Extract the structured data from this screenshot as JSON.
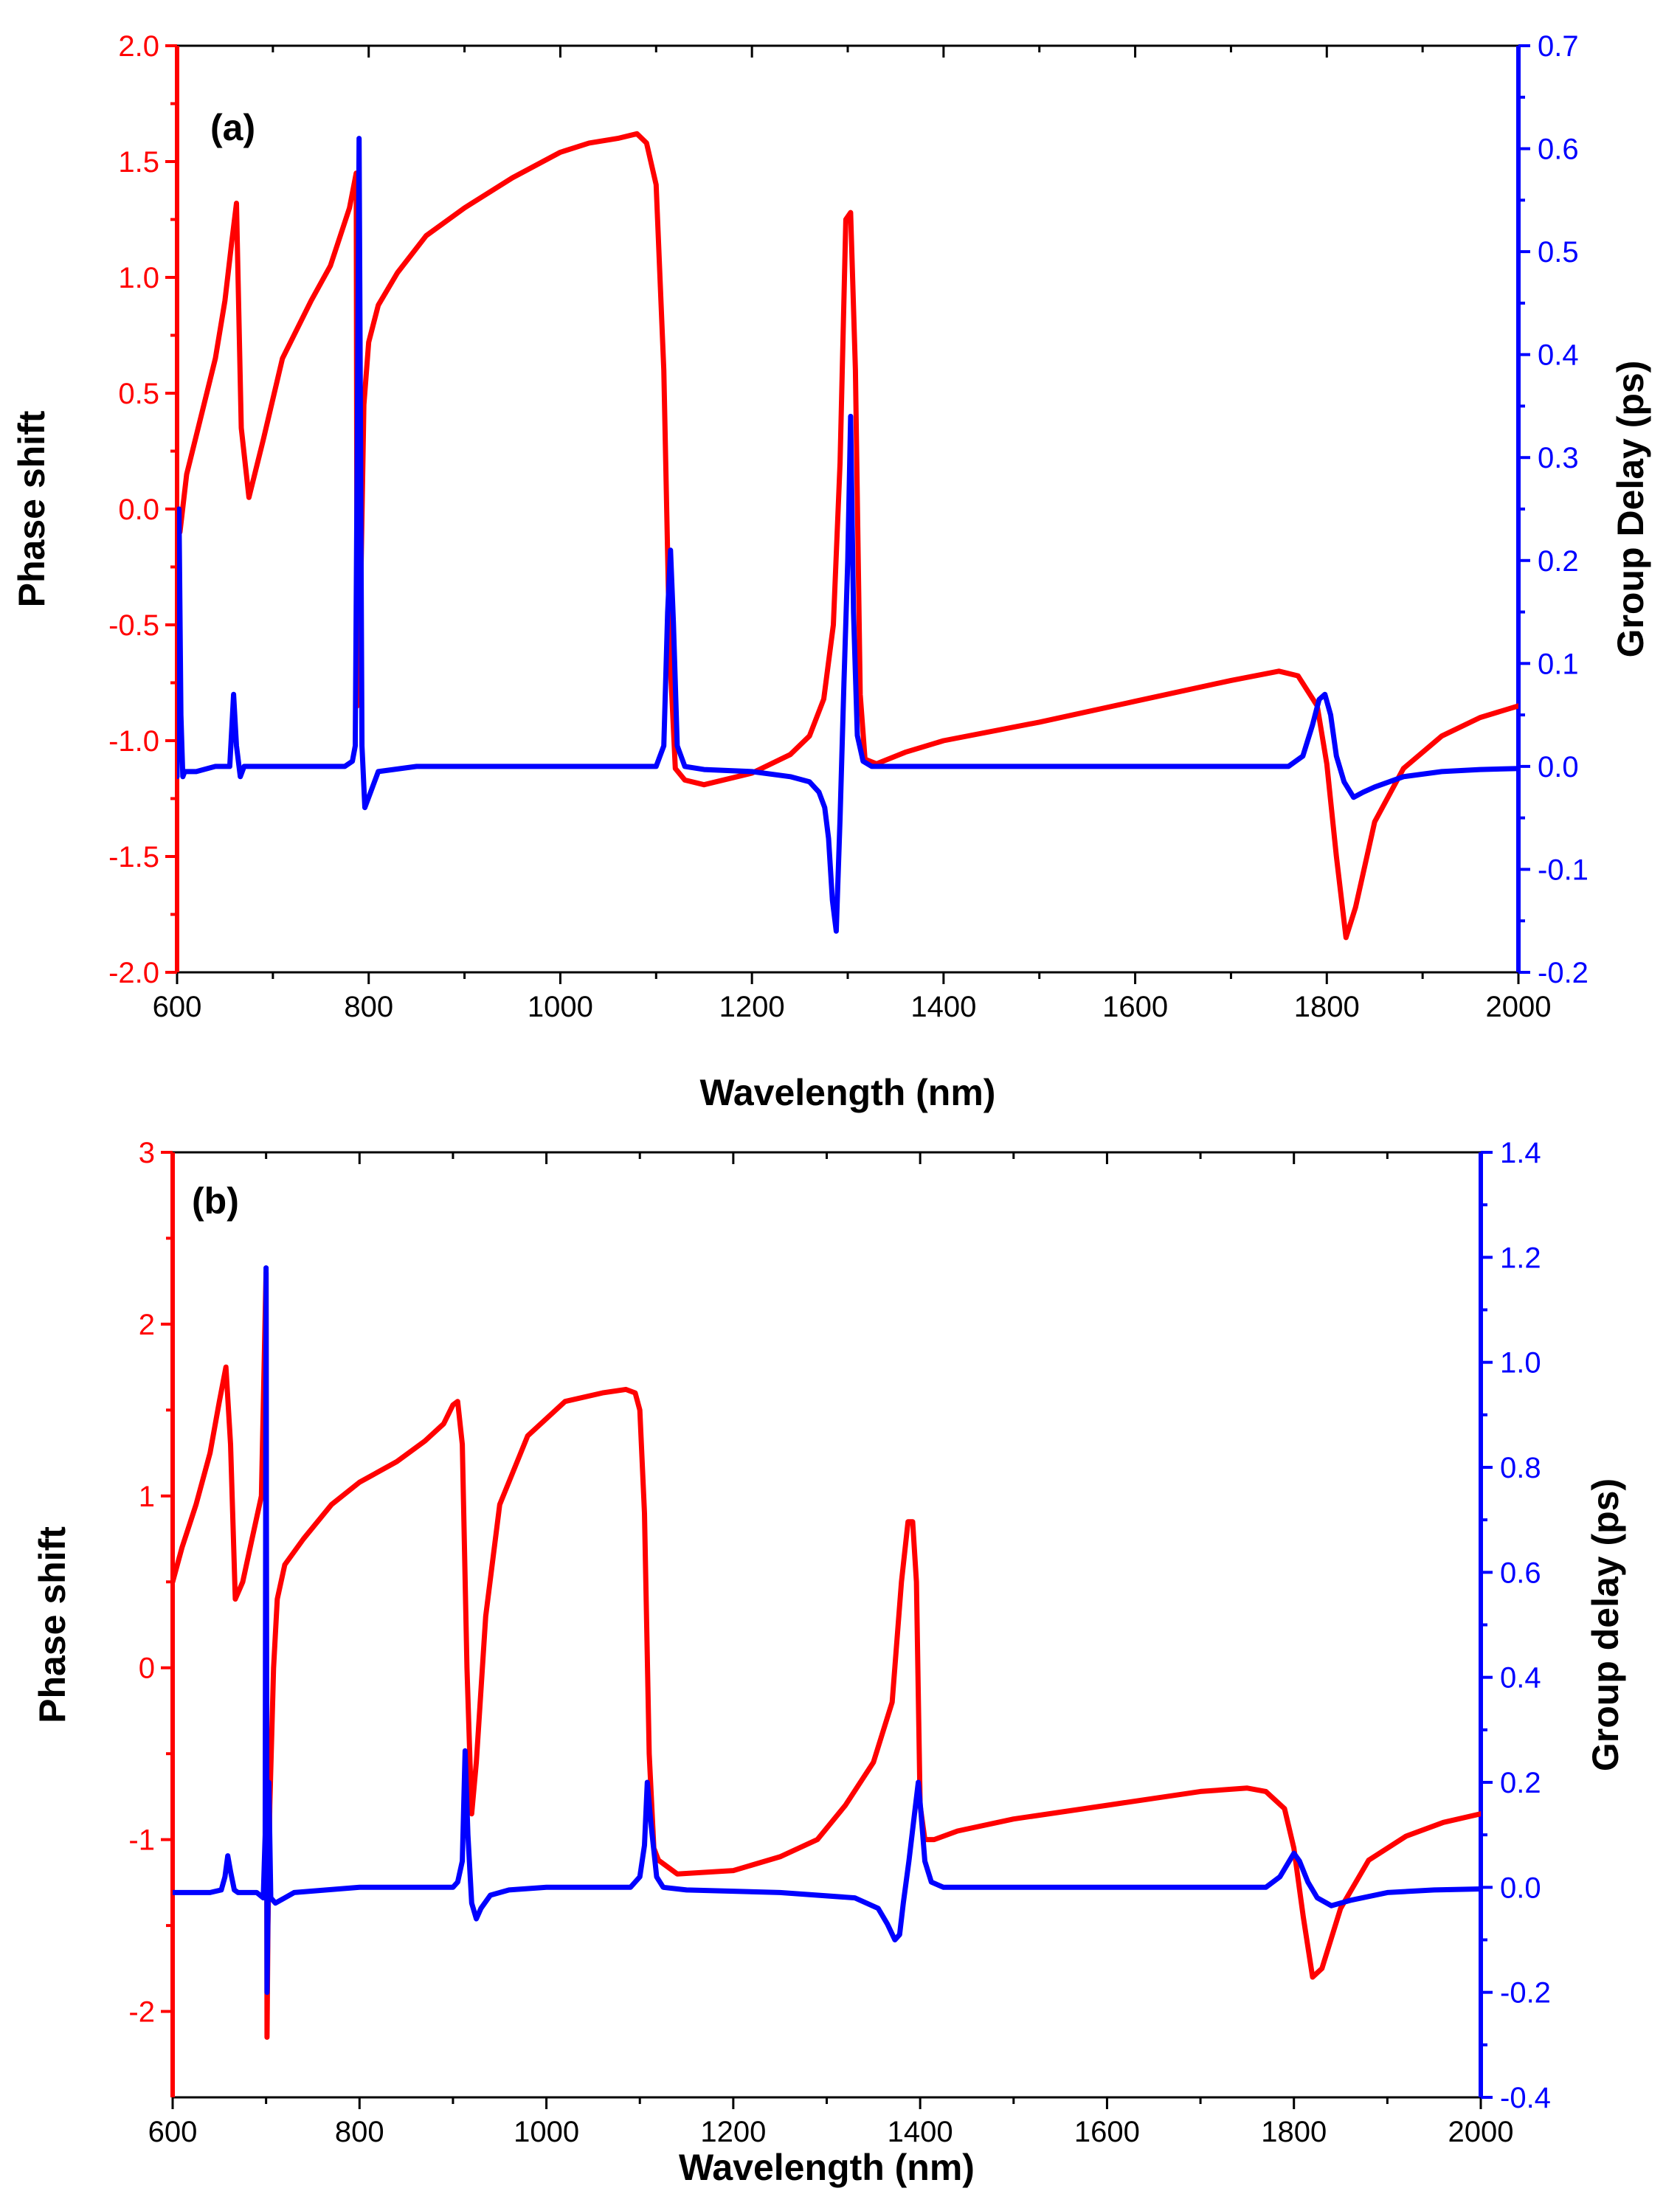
{
  "chart_data": [
    {
      "type": "line",
      "panel_label": "(a)",
      "xlabel": "Wavelength (nm)",
      "ylabel_left": "Phase shift",
      "ylabel_right": "Group Delay (ps)",
      "xlim": [
        600,
        2000
      ],
      "ylim_left": [
        -2.0,
        2.0
      ],
      "ylim_right": [
        -0.2,
        0.7
      ],
      "x_ticks": [
        "600",
        "800",
        "1000",
        "1200",
        "1400",
        "1600",
        "1800",
        "2000"
      ],
      "left_ticks": [
        "-2.0",
        "-1.5",
        "-1.0",
        "-0.5",
        "0.0",
        "0.5",
        "1.0",
        "1.5",
        "2.0"
      ],
      "right_ticks": [
        "-0.2",
        "-0.1",
        "0.0",
        "0.1",
        "0.2",
        "0.3",
        "0.4",
        "0.5",
        "0.6",
        "0.7"
      ],
      "colors": {
        "phase": "#ff0000",
        "delay": "#0000ff"
      },
      "series": [
        {
          "name": "Phase shift",
          "axis": "left",
          "x": [
            603,
            610,
            625,
            640,
            650,
            657,
            662,
            667,
            675,
            690,
            710,
            740,
            760,
            780,
            787,
            788,
            790,
            795,
            800,
            810,
            830,
            860,
            900,
            950,
            1000,
            1030,
            1060,
            1080,
            1090,
            1100,
            1108,
            1114,
            1120,
            1130,
            1150,
            1200,
            1240,
            1260,
            1275,
            1285,
            1292,
            1298,
            1303,
            1308,
            1313,
            1318,
            1330,
            1360,
            1400,
            1500,
            1600,
            1700,
            1750,
            1770,
            1790,
            1800,
            1810,
            1820,
            1830,
            1850,
            1880,
            1920,
            1960,
            2000
          ],
          "y": [
            -0.1,
            0.15,
            0.4,
            0.65,
            0.9,
            1.15,
            1.32,
            0.35,
            0.05,
            0.3,
            0.65,
            0.9,
            1.05,
            1.3,
            1.45,
            -0.85,
            -0.75,
            0.45,
            0.72,
            0.88,
            1.02,
            1.18,
            1.3,
            1.43,
            1.54,
            1.58,
            1.6,
            1.62,
            1.58,
            1.4,
            0.6,
            -0.6,
            -1.12,
            -1.17,
            -1.19,
            -1.14,
            -1.06,
            -0.98,
            -0.82,
            -0.5,
            0.2,
            1.25,
            1.28,
            0.6,
            -0.8,
            -1.08,
            -1.1,
            -1.05,
            -1.0,
            -0.92,
            -0.83,
            -0.74,
            -0.7,
            -0.72,
            -0.85,
            -1.1,
            -1.5,
            -1.85,
            -1.72,
            -1.35,
            -1.12,
            -0.98,
            -0.9,
            -0.85
          ]
        },
        {
          "name": "Group Delay (ps)",
          "axis": "right",
          "x": [
            600,
            602,
            604,
            606,
            608,
            612,
            620,
            640,
            655,
            659,
            662,
            666,
            670,
            700,
            740,
            760,
            775,
            783,
            786,
            788,
            790,
            793,
            796,
            800,
            810,
            850,
            900,
            1000,
            1050,
            1100,
            1108,
            1112,
            1115,
            1118,
            1122,
            1130,
            1150,
            1200,
            1240,
            1260,
            1270,
            1276,
            1280,
            1284,
            1288,
            1292,
            1296,
            1300,
            1303,
            1306,
            1310,
            1316,
            1325,
            1340,
            1400,
            1500,
            1600,
            1700,
            1760,
            1775,
            1785,
            1792,
            1798,
            1804,
            1810,
            1818,
            1828,
            1838,
            1850,
            1880,
            1920,
            1960,
            2000
          ],
          "y": [
            -0.01,
            0.25,
            0.05,
            -0.01,
            -0.005,
            -0.005,
            -0.005,
            0.0,
            0.0,
            0.07,
            0.02,
            -0.01,
            0.0,
            0.0,
            0.0,
            0.0,
            0.0,
            0.005,
            0.02,
            0.3,
            0.61,
            0.02,
            -0.04,
            -0.03,
            -0.005,
            0.0,
            0.0,
            0.0,
            0.0,
            0.0,
            0.02,
            0.15,
            0.21,
            0.14,
            0.02,
            0.0,
            -0.003,
            -0.005,
            -0.01,
            -0.015,
            -0.025,
            -0.04,
            -0.07,
            -0.13,
            -0.16,
            -0.05,
            0.08,
            0.2,
            0.34,
            0.15,
            0.03,
            0.005,
            0.0,
            0.0,
            0.0,
            0.0,
            0.0,
            0.0,
            0.0,
            0.01,
            0.04,
            0.065,
            0.07,
            0.05,
            0.01,
            -0.015,
            -0.03,
            -0.025,
            -0.02,
            -0.01,
            -0.005,
            -0.003,
            -0.002
          ]
        }
      ]
    },
    {
      "type": "line",
      "panel_label": "(b)",
      "xlabel": "Wavelength (nm)",
      "ylabel_left": "Phase shift",
      "ylabel_right": "Group delay (ps)",
      "xlim": [
        600,
        2000
      ],
      "ylim_left": [
        -2.5,
        3.0
      ],
      "ylim_right": [
        -0.4,
        1.4
      ],
      "x_ticks": [
        "600",
        "800",
        "1000",
        "1200",
        "1400",
        "1600",
        "1800",
        "2000"
      ],
      "left_ticks": [
        "-2",
        "-1",
        "0",
        "1",
        "2",
        "3"
      ],
      "right_ticks": [
        "-0.4",
        "-0.2",
        "0.0",
        "0.2",
        "0.4",
        "0.6",
        "0.8",
        "1.0",
        "1.2",
        "1.4"
      ],
      "colors": {
        "phase": "#ff0000",
        "delay": "#0000ff"
      },
      "series": [
        {
          "name": "Phase shift",
          "axis": "left",
          "x": [
            600,
            610,
            625,
            640,
            650,
            657,
            662,
            667,
            675,
            685,
            695,
            700,
            701,
            702,
            704,
            708,
            712,
            720,
            740,
            770,
            800,
            840,
            870,
            890,
            900,
            905,
            910,
            915,
            920,
            925,
            935,
            950,
            980,
            1020,
            1060,
            1085,
            1095,
            1100,
            1105,
            1110,
            1115,
            1120,
            1140,
            1200,
            1250,
            1290,
            1320,
            1350,
            1370,
            1380,
            1387,
            1392,
            1396,
            1400,
            1405,
            1415,
            1440,
            1500,
            1600,
            1700,
            1750,
            1770,
            1790,
            1800,
            1810,
            1820,
            1830,
            1850,
            1880,
            1920,
            1960,
            2000
          ],
          "y": [
            0.5,
            0.7,
            0.95,
            1.25,
            1.55,
            1.75,
            1.3,
            0.4,
            0.5,
            0.75,
            1.0,
            2.3,
            -2.15,
            -1.5,
            -0.8,
            0.0,
            0.4,
            0.6,
            0.75,
            0.95,
            1.08,
            1.2,
            1.32,
            1.42,
            1.53,
            1.55,
            1.3,
            0.0,
            -0.85,
            -0.55,
            0.3,
            0.95,
            1.35,
            1.55,
            1.6,
            1.62,
            1.6,
            1.5,
            0.9,
            -0.5,
            -1.05,
            -1.12,
            -1.2,
            -1.18,
            -1.1,
            -1.0,
            -0.8,
            -0.55,
            -0.2,
            0.5,
            0.85,
            0.85,
            0.5,
            -0.8,
            -1.0,
            -1.0,
            -0.95,
            -0.88,
            -0.8,
            -0.72,
            -0.7,
            -0.72,
            -0.82,
            -1.05,
            -1.45,
            -1.8,
            -1.75,
            -1.4,
            -1.12,
            -0.98,
            -0.9,
            -0.85
          ]
        },
        {
          "name": "Group delay (ps)",
          "axis": "right",
          "x": [
            600,
            620,
            640,
            652,
            656,
            659,
            662,
            666,
            670,
            690,
            697,
            699,
            700,
            701,
            702,
            703,
            705,
            710,
            730,
            800,
            850,
            890,
            900,
            905,
            910,
            913,
            916,
            920,
            925,
            930,
            940,
            960,
            1000,
            1050,
            1090,
            1100,
            1105,
            1108,
            1112,
            1118,
            1125,
            1150,
            1250,
            1330,
            1355,
            1365,
            1373,
            1378,
            1382,
            1388,
            1394,
            1398,
            1401,
            1405,
            1412,
            1425,
            1450,
            1500,
            1700,
            1770,
            1785,
            1795,
            1800,
            1806,
            1815,
            1825,
            1840,
            1860,
            1900,
            1950,
            2000
          ],
          "y": [
            -0.01,
            -0.01,
            -0.01,
            -0.005,
            0.02,
            0.06,
            0.03,
            -0.005,
            -0.01,
            -0.01,
            -0.02,
            0.1,
            1.18,
            -0.2,
            -0.05,
            0.2,
            -0.02,
            -0.03,
            -0.01,
            0.0,
            0.0,
            0.0,
            0.0,
            0.01,
            0.05,
            0.26,
            0.1,
            -0.03,
            -0.06,
            -0.04,
            -0.015,
            -0.005,
            0.0,
            0.0,
            0.0,
            0.02,
            0.08,
            0.2,
            0.12,
            0.02,
            0.0,
            -0.005,
            -0.01,
            -0.02,
            -0.04,
            -0.07,
            -0.1,
            -0.09,
            -0.03,
            0.05,
            0.14,
            0.2,
            0.14,
            0.05,
            0.01,
            0.0,
            0.0,
            0.0,
            0.0,
            0.0,
            0.02,
            0.05,
            0.065,
            0.05,
            0.01,
            -0.02,
            -0.035,
            -0.025,
            -0.01,
            -0.005,
            -0.003
          ]
        }
      ]
    }
  ]
}
